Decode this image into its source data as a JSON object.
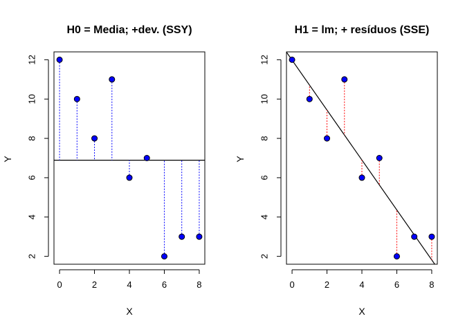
{
  "chart_data": [
    {
      "type": "scatter",
      "title": "H0 = Media; +dev. (SSY)",
      "xlabel": "X",
      "ylabel": "Y",
      "xlim": [
        -0.32,
        8.32
      ],
      "ylim": [
        1.6,
        12.4
      ],
      "xticks": [
        "0",
        "2",
        "4",
        "6",
        "8"
      ],
      "yticks": [
        "2",
        "4",
        "6",
        "8",
        "10",
        "12"
      ],
      "points": {
        "x": [
          0,
          1,
          2,
          3,
          4,
          5,
          6,
          7,
          8
        ],
        "y": [
          12,
          10,
          8,
          11,
          6,
          7,
          2,
          3,
          3
        ]
      },
      "reference_line": {
        "kind": "horizontal",
        "y": 6.89
      },
      "segments_color": "#0000ff",
      "point_color": "#0000ff",
      "line_color": "#000000"
    },
    {
      "type": "scatter",
      "title": "H1 = lm; + resíduos (SSE)",
      "xlabel": "X",
      "ylabel": "Y",
      "xlim": [
        -0.32,
        8.32
      ],
      "ylim": [
        1.6,
        12.4
      ],
      "xticks": [
        "0",
        "2",
        "4",
        "6",
        "8"
      ],
      "yticks": [
        "2",
        "4",
        "6",
        "8",
        "10",
        "12"
      ],
      "points": {
        "x": [
          0,
          1,
          2,
          3,
          4,
          5,
          6,
          7,
          8
        ],
        "y": [
          12,
          10,
          8,
          11,
          6,
          7,
          2,
          3,
          3
        ]
      },
      "reference_line": {
        "kind": "regression",
        "intercept": 11.98,
        "slope": -1.27
      },
      "segments_color": "#ff0000",
      "point_color": "#0000ff",
      "line_color": "#000000"
    }
  ]
}
